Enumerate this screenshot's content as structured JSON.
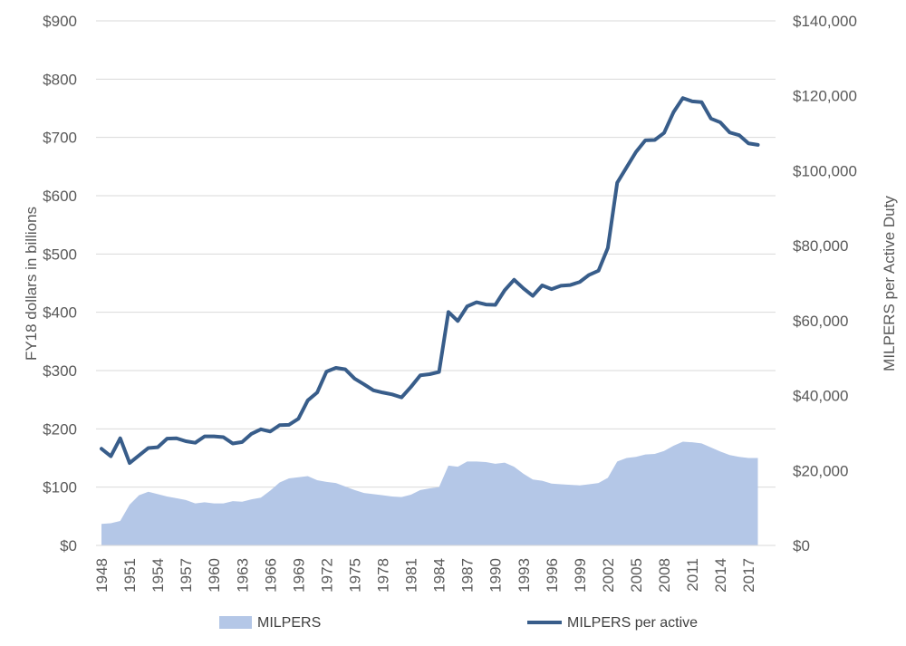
{
  "chart_data": {
    "type": "line",
    "title": "",
    "ylabel_left": "FY18 dollars in billions",
    "ylabel_right": "MILPERS per Active Duty",
    "left_axis": {
      "min": 0,
      "max": 900,
      "step": 100,
      "ticks": [
        "$0",
        "$100",
        "$200",
        "$300",
        "$400",
        "$500",
        "$600",
        "$700",
        "$800",
        "$900"
      ]
    },
    "right_axis": {
      "min": 0,
      "max": 140000,
      "step": 20000,
      "ticks": [
        "$0",
        "$20,000",
        "$40,000",
        "$60,000",
        "$80,000",
        "$100,000",
        "$120,000",
        "$140,000"
      ]
    },
    "x_tick_labels": [
      "1948",
      "1951",
      "1954",
      "1957",
      "1960",
      "1963",
      "1966",
      "1969",
      "1972",
      "1975",
      "1978",
      "1981",
      "1984",
      "1987",
      "1990",
      "1993",
      "1996",
      "1999",
      "2002",
      "2005",
      "2008",
      "2011",
      "2014",
      "2017"
    ],
    "x": [
      1948,
      1949,
      1950,
      1951,
      1952,
      1953,
      1954,
      1955,
      1956,
      1957,
      1958,
      1959,
      1960,
      1961,
      1962,
      1963,
      1964,
      1965,
      1966,
      1967,
      1968,
      1969,
      1970,
      1971,
      1972,
      1973,
      1974,
      1975,
      1976,
      1977,
      1978,
      1979,
      1980,
      1981,
      1982,
      1983,
      1984,
      1985,
      1986,
      1987,
      1988,
      1989,
      1990,
      1991,
      1992,
      1993,
      1994,
      1995,
      1996,
      1997,
      1998,
      1999,
      2000,
      2001,
      2002,
      2003,
      2004,
      2005,
      2006,
      2007,
      2008,
      2009,
      2010,
      2011,
      2012,
      2013,
      2014,
      2015,
      2016,
      2017,
      2018
    ],
    "series": [
      {
        "name": "MILPERS",
        "kind": "area",
        "axis": "left",
        "color": "#b4c7e7",
        "values": [
          37,
          38,
          42,
          70,
          86,
          92,
          88,
          84,
          81,
          78,
          72,
          74,
          72,
          72,
          76,
          75,
          79,
          82,
          94,
          108,
          115,
          117,
          119,
          112,
          109,
          107,
          101,
          95,
          90,
          88,
          86,
          84,
          83,
          87,
          95,
          98,
          100,
          137,
          135,
          144,
          144,
          143,
          140,
          142,
          135,
          123,
          113,
          111,
          106,
          105,
          104,
          103,
          105,
          107,
          116,
          144,
          150,
          152,
          156,
          157,
          162,
          171,
          178,
          177,
          175,
          168,
          161,
          155,
          152,
          150,
          150
        ]
      },
      {
        "name": "MILPERS per active",
        "kind": "line",
        "axis": "right",
        "color": "#385d8a",
        "values": [
          25800,
          23800,
          28600,
          22000,
          24000,
          26000,
          26200,
          28500,
          28600,
          27800,
          27400,
          29100,
          29100,
          28900,
          27200,
          27600,
          29800,
          31000,
          30400,
          32100,
          32200,
          33800,
          38700,
          40800,
          46400,
          47400,
          47000,
          44500,
          43000,
          41400,
          40800,
          40300,
          39500,
          42300,
          45400,
          45700,
          46300,
          62300,
          59900,
          63800,
          64900,
          64300,
          64200,
          68100,
          70900,
          68600,
          66600,
          69400,
          68400,
          69300,
          69500,
          70300,
          72200,
          73300,
          79400,
          96800,
          100900,
          105000,
          108100,
          108200,
          110100,
          115600,
          119400,
          118500,
          118300,
          113900,
          112900,
          110200,
          109500,
          107300,
          106900
        ]
      }
    ],
    "legend_position": "bottom",
    "grid": true
  }
}
